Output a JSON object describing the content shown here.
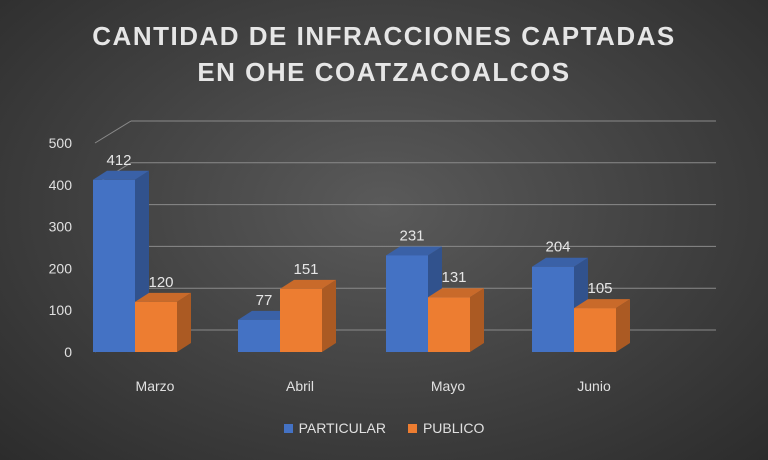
{
  "chart_data": {
    "type": "bar",
    "title_lines": [
      "CANTIDAD DE INFRACCIONES CAPTADAS",
      "EN OHE COATZACOALCOS"
    ],
    "categories": [
      "Marzo",
      "Abril",
      "Mayo",
      "Junio"
    ],
    "series": [
      {
        "name": "PARTICULAR",
        "values": [
          412,
          77,
          231,
          204
        ],
        "color": "#4472C4"
      },
      {
        "name": "PUBLICO",
        "values": [
          120,
          151,
          131,
          105
        ],
        "color": "#ED7D31"
      }
    ],
    "ylim": [
      0,
      500
    ],
    "yticks": [
      0,
      100,
      200,
      300,
      400,
      500
    ],
    "grid": true,
    "legend_position": "bottom",
    "three_d": true
  }
}
